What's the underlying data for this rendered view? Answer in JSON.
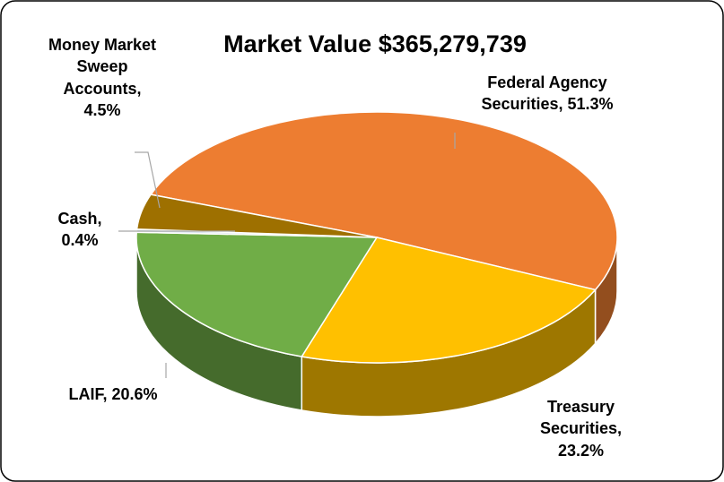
{
  "chart_data": {
    "type": "pie",
    "title": "Market Value $365,279,739",
    "values": [
      51.3,
      23.2,
      20.6,
      0.4,
      4.5
    ],
    "value_labels": [
      "Federal Agency Securities, 51.3%",
      "Treasury Securities, 23.2%",
      "LAIF, 20.6%",
      "Cash, 0.4%",
      "Money Market Sweep Accounts, 4.5%"
    ],
    "colors": [
      "#ED7D31",
      "#FFC000",
      "#70AD47",
      "#DCE6F2",
      "#9E7000"
    ]
  }
}
